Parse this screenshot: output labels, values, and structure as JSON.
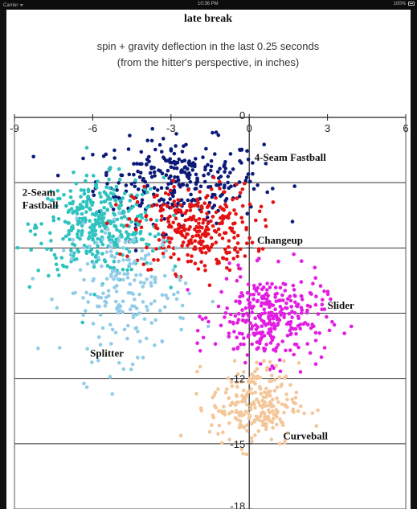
{
  "status_bar": {
    "carrier": "Carrier ᯤ",
    "time": "10:36 PM",
    "battery": "100%"
  },
  "chart_data": {
    "type": "scatter",
    "title": "late break",
    "subtitle_lines": [
      "spin + gravity deflection in the last 0.25 seconds",
      "(from the hitter's perspective, in inches)"
    ],
    "xlim": [
      -9,
      6
    ],
    "ylim": [
      -18,
      0
    ],
    "x_ticks": [
      -9,
      -6,
      -3,
      0,
      3,
      6
    ],
    "y_ticks": [
      0,
      -3,
      -6,
      -9,
      -12,
      -15,
      -18
    ],
    "x_tick_labels": [
      "-9",
      "-6",
      "-3",
      "0",
      "3",
      "6"
    ],
    "y_tick_labels": [
      "0",
      "",
      "",
      "",
      "-12",
      "-15",
      "-18"
    ],
    "grid": "horizontal",
    "series": [
      {
        "name": "4-Seam Fastball",
        "label_lines": [
          "4-Seam Fastball"
        ],
        "color": "#0b1a78",
        "center": [
          -2.7,
          -2.9
        ],
        "spread": [
          1.6,
          0.95
        ],
        "count": 300,
        "label_at": [
          0.2,
          -2.0
        ]
      },
      {
        "name": "2-Seam Fastball",
        "label_lines": [
          "2-Seam",
          "Fastball"
        ],
        "color": "#2fc3c0",
        "center": [
          -5.7,
          -5.0
        ],
        "spread": [
          1.2,
          1.1
        ],
        "count": 380,
        "label_at": [
          -8.7,
          -3.6
        ]
      },
      {
        "name": "Changeup",
        "label_lines": [
          "Changeup"
        ],
        "color": "#e41212",
        "center": [
          -2.1,
          -5.1
        ],
        "spread": [
          1.15,
          1.0
        ],
        "count": 300,
        "label_at": [
          0.3,
          -5.8
        ]
      },
      {
        "name": "Splitter",
        "label_lines": [
          "Splitter"
        ],
        "color": "#92cce8",
        "center": [
          -4.7,
          -8.0
        ],
        "spread": [
          1.2,
          1.5
        ],
        "count": 200,
        "label_at": [
          -6.1,
          -11.0
        ]
      },
      {
        "name": "Slider",
        "label_lines": [
          "Slider"
        ],
        "color": "#e21ee2",
        "center": [
          0.8,
          -9.2
        ],
        "spread": [
          1.05,
          1.0
        ],
        "count": 320,
        "label_at": [
          3.0,
          -8.8
        ]
      },
      {
        "name": "Curveball",
        "label_lines": [
          "Curveball"
        ],
        "color": "#f3c79a",
        "center": [
          0.2,
          -13.2
        ],
        "spread": [
          0.85,
          0.95
        ],
        "count": 240,
        "label_at": [
          1.3,
          -14.8
        ]
      }
    ]
  }
}
